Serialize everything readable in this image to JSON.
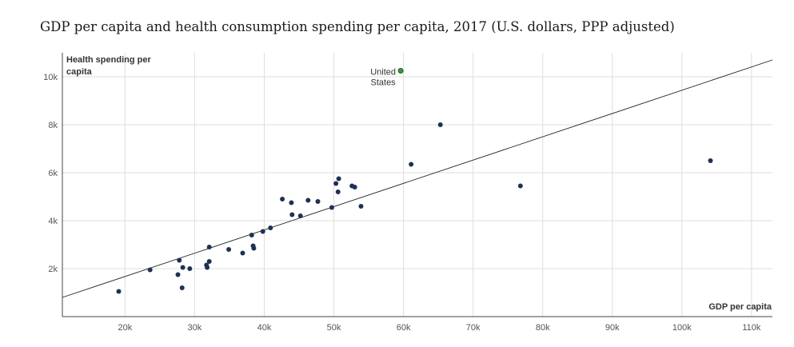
{
  "chart_data": {
    "type": "scatter",
    "title": "GDP per capita and health consumption spending per capita, 2017 (U.S. dollars, PPP adjusted)",
    "xlabel": "GDP per capita",
    "ylabel": "Health spending per capita",
    "xlim": [
      11000,
      113000
    ],
    "ylim": [
      0,
      11000
    ],
    "x_ticks": [
      20000,
      30000,
      40000,
      50000,
      60000,
      70000,
      80000,
      90000,
      100000,
      110000
    ],
    "x_tick_labels": [
      "20k",
      "30k",
      "40k",
      "50k",
      "60k",
      "70k",
      "80k",
      "90k",
      "100k",
      "110k"
    ],
    "y_ticks": [
      2000,
      4000,
      6000,
      8000,
      10000
    ],
    "y_tick_labels": [
      "2k",
      "4k",
      "6k",
      "8k",
      "10k"
    ],
    "grid": true,
    "point_color": "#1f3056",
    "highlight_color": "#3a9a3a",
    "trendline": {
      "x": [
        11000,
        113000
      ],
      "y": [
        800,
        10700
      ]
    },
    "points": [
      {
        "x": 19100,
        "y": 1050
      },
      {
        "x": 23600,
        "y": 1950
      },
      {
        "x": 27600,
        "y": 1750
      },
      {
        "x": 27800,
        "y": 2350
      },
      {
        "x": 28200,
        "y": 1200
      },
      {
        "x": 28300,
        "y": 2050
      },
      {
        "x": 29300,
        "y": 2000
      },
      {
        "x": 31700,
        "y": 2150
      },
      {
        "x": 31800,
        "y": 2050
      },
      {
        "x": 32100,
        "y": 2300
      },
      {
        "x": 32100,
        "y": 2900
      },
      {
        "x": 34900,
        "y": 2800
      },
      {
        "x": 36900,
        "y": 2650
      },
      {
        "x": 38200,
        "y": 3400
      },
      {
        "x": 38400,
        "y": 2950
      },
      {
        "x": 38500,
        "y": 2850
      },
      {
        "x": 39800,
        "y": 3550
      },
      {
        "x": 40900,
        "y": 3700
      },
      {
        "x": 42600,
        "y": 4900
      },
      {
        "x": 43900,
        "y": 4750
      },
      {
        "x": 44000,
        "y": 4250
      },
      {
        "x": 45200,
        "y": 4200
      },
      {
        "x": 46300,
        "y": 4850
      },
      {
        "x": 47700,
        "y": 4800
      },
      {
        "x": 49700,
        "y": 4550
      },
      {
        "x": 50300,
        "y": 5550
      },
      {
        "x": 50600,
        "y": 5200
      },
      {
        "x": 50700,
        "y": 5750
      },
      {
        "x": 52600,
        "y": 5450
      },
      {
        "x": 53000,
        "y": 5400
      },
      {
        "x": 53900,
        "y": 4600
      },
      {
        "x": 61100,
        "y": 6350
      },
      {
        "x": 65300,
        "y": 8000
      },
      {
        "x": 76800,
        "y": 5450
      },
      {
        "x": 104100,
        "y": 6500
      }
    ],
    "highlight": {
      "label_line1": "United",
      "label_line2": "States",
      "x": 59600,
      "y": 10250
    }
  }
}
